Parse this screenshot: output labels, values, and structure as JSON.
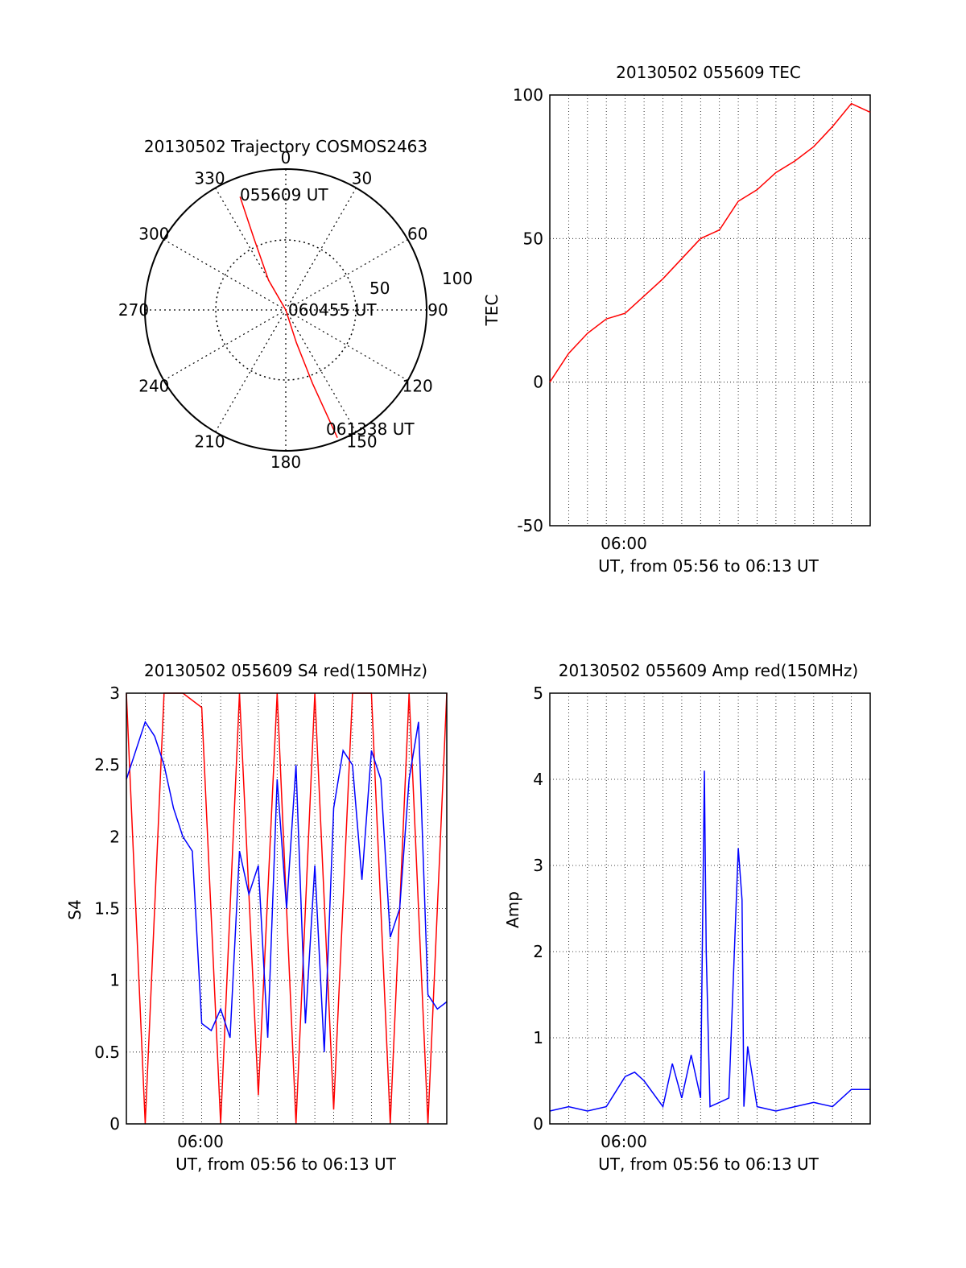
{
  "colors": {
    "red": "#ff0000",
    "blue": "#0000ff",
    "axis": "#000000",
    "grid": "#000000"
  },
  "chart_data": [
    {
      "type": "polar",
      "title": "20130502 Trajectory COSMOS2463",
      "azimuth_labels": [
        "0",
        "30",
        "60",
        "90",
        "120",
        "150",
        "180",
        "210",
        "240",
        "270",
        "300",
        "330"
      ],
      "radius_labels": [
        "50",
        "100"
      ],
      "trajectory": {
        "color": "red",
        "points": [
          {
            "az": 338,
            "zen": 78
          },
          {
            "az": 336,
            "zen": 50
          },
          {
            "az": 330,
            "zen": 22
          },
          {
            "az": 180,
            "zen": 0
          },
          {
            "az": 162,
            "zen": 22
          },
          {
            "az": 160,
            "zen": 50
          },
          {
            "az": 158,
            "zen": 88
          }
        ]
      },
      "annotations": [
        "055609 UT",
        "060455 UT",
        "061338 UT"
      ]
    },
    {
      "type": "line",
      "title": "20130502 055609 TEC",
      "ylabel": "TEC",
      "xlabel": "UT, from 05:56 to 06:13 UT",
      "xtick_label": "06:00",
      "ylim": [
        -50,
        100
      ],
      "yticks": [
        "-50",
        "0",
        "50",
        "100"
      ],
      "series": [
        {
          "name": "TEC",
          "color": "red",
          "x": [
            0,
            1,
            2,
            3,
            4,
            5,
            6,
            7,
            8,
            9,
            10,
            11,
            12,
            13,
            14,
            15,
            16,
            17
          ],
          "y": [
            0,
            10,
            17,
            22,
            24,
            30,
            36,
            43,
            50,
            53,
            63,
            67,
            73,
            77,
            82,
            89,
            97,
            94
          ]
        }
      ]
    },
    {
      "type": "line",
      "title": "20130502 055609 S4 red(150MHz)",
      "ylabel": "S4",
      "xlabel": "UT, from 05:56 to 06:13 UT",
      "xtick_label": "06:00",
      "ylim": [
        0,
        3
      ],
      "yticks": [
        "0",
        "0.5",
        "1",
        "1.5",
        "2",
        "2.5",
        "3"
      ],
      "series": [
        {
          "name": "blue",
          "color": "blue",
          "x": [
            0,
            0.5,
            1,
            1.5,
            2,
            2.5,
            3,
            3.5,
            4,
            4.5,
            5,
            5.5,
            6,
            6.5,
            7,
            7.5,
            8,
            8.5,
            9,
            9.5,
            10,
            10.5,
            11,
            11.5,
            12,
            12.5,
            13,
            13.5,
            14,
            14.5,
            15,
            15.5,
            16,
            16.5,
            17
          ],
          "y": [
            2.4,
            2.6,
            2.8,
            2.7,
            2.5,
            2.2,
            2.0,
            1.9,
            0.7,
            0.65,
            0.8,
            0.6,
            1.9,
            1.6,
            1.8,
            0.6,
            2.4,
            1.5,
            2.5,
            0.7,
            1.8,
            0.5,
            2.2,
            2.6,
            2.5,
            1.7,
            2.6,
            2.4,
            1.3,
            1.5,
            2.4,
            2.8,
            0.9,
            0.8,
            0.85
          ]
        },
        {
          "name": "red",
          "color": "red",
          "x": [
            0,
            1,
            2,
            3,
            4,
            5,
            6,
            7,
            8,
            9,
            10,
            11,
            12,
            13,
            14,
            15,
            16,
            17
          ],
          "y": [
            3,
            0,
            3,
            3,
            2.9,
            0,
            3,
            0.2,
            3,
            0,
            3,
            0.1,
            3,
            3,
            0,
            3,
            0,
            3
          ]
        }
      ]
    },
    {
      "type": "line",
      "title": "20130502 055609 Amp red(150MHz)",
      "ylabel": "Amp",
      "xlabel": "UT, from 05:56 to 06:13 UT",
      "xtick_label": "06:00",
      "ylim": [
        0,
        5
      ],
      "yticks": [
        "0",
        "1",
        "2",
        "3",
        "4",
        "5"
      ],
      "series": [
        {
          "name": "blue",
          "color": "blue",
          "x": [
            0,
            1,
            2,
            3,
            4,
            4.5,
            5,
            6,
            6.5,
            7,
            7.5,
            8,
            8.2,
            8.3,
            8.5,
            9,
            9.5,
            10,
            10.2,
            10.3,
            10.5,
            11,
            12,
            13,
            14,
            15,
            16,
            17
          ],
          "y": [
            0.15,
            0.2,
            0.15,
            0.2,
            0.55,
            0.6,
            0.5,
            0.2,
            0.7,
            0.3,
            0.8,
            0.3,
            4.1,
            2.0,
            0.2,
            0.25,
            0.3,
            3.2,
            2.6,
            0.2,
            0.9,
            0.2,
            0.15,
            0.2,
            0.25,
            0.2,
            0.4,
            0.4
          ]
        }
      ]
    }
  ]
}
